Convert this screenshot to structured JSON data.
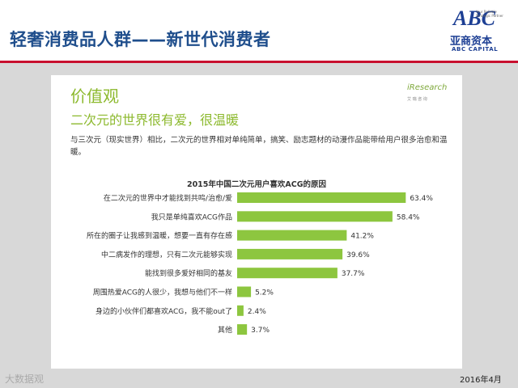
{
  "header": {
    "title": "轻奢消费品人群——新世代消费者",
    "logo": {
      "abc": "ABC",
      "tagline": "Your Reliable Strategic Partner",
      "cn": "亚商资本",
      "en": "ABC CAPITAL"
    }
  },
  "slide": {
    "section_title": "价值观",
    "subtitle": "二次元的世界很有爱，很温暖",
    "body": "与三次元（现实世界）相比，二次元的世界相对单纯简单，搞笑、励志题材的动漫作品能带给用户很多治愈和温暖。",
    "source_logo": {
      "name": "iResearch",
      "cn": "艾 瑞 咨 询"
    }
  },
  "chart_data": {
    "type": "bar",
    "orientation": "horizontal",
    "title": "2015年中国二次元用户喜欢ACG的原因",
    "categories": [
      "在二次元的世界中才能找到共鸣/治愈/爱",
      "我只是单纯喜欢ACG作品",
      "所在的圈子让我感到温暖，想要一直有存在感",
      "中二病发作的理想，只有二次元能够实现",
      "能找到很多爱好相同的基友",
      "周围热爱ACG的人很少，我想与他们不一样",
      "身边的小伙伴们都喜欢ACG，我不能out了",
      "其他"
    ],
    "values": [
      63.4,
      58.4,
      41.2,
      39.6,
      37.7,
      5.2,
      2.4,
      3.7
    ],
    "value_labels": [
      "63.4%",
      "58.4%",
      "41.2%",
      "39.6%",
      "37.7%",
      "5.2%",
      "2.4%",
      "3.7%"
    ],
    "xlim": [
      0,
      70
    ],
    "bar_color": "#8dc63f",
    "grid": false
  },
  "footer": {
    "watermark": "大数据观",
    "date": "2016年4月"
  },
  "colors": {
    "title_blue": "#1f4e8c",
    "accent_red": "#c8102e",
    "green": "#8dc63f"
  }
}
